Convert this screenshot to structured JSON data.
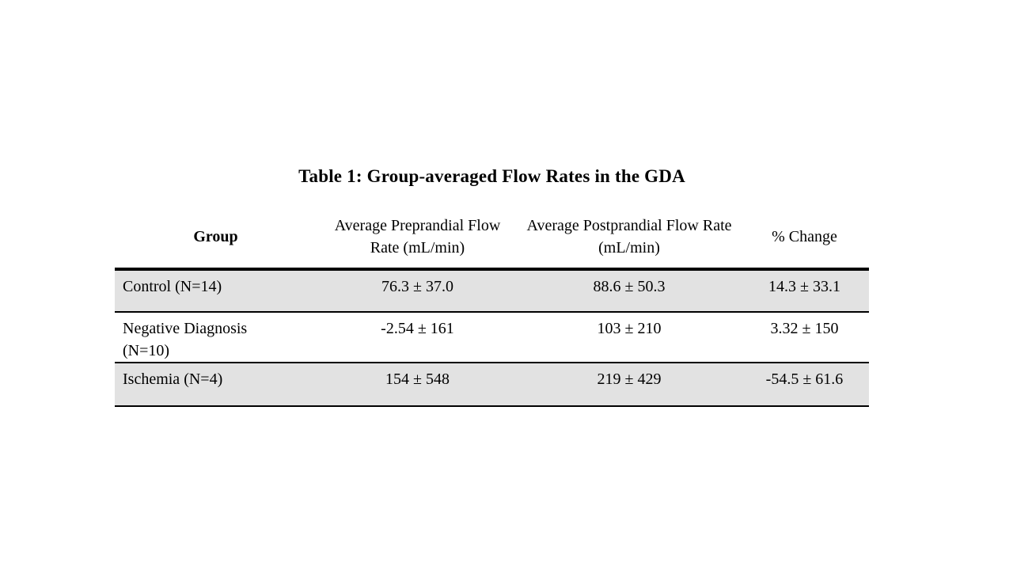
{
  "document": {
    "background_color": "#ffffff"
  },
  "table": {
    "title": "Table 1: Group-averaged Flow Rates in the GDA",
    "columns": [
      "Group",
      "Average Preprandial Flow Rate (mL/min)",
      "Average Postprandial Flow Rate (mL/min)",
      "% Change"
    ],
    "rows": [
      {
        "group": "Control (N=14)",
        "preprandial": "76.3 ± 37.0",
        "postprandial": "88.6 ± 50.3",
        "pct_change": "14.3 ± 33.1",
        "shaded": true
      },
      {
        "group": "Negative Diagnosis",
        "group_line2": "(N=10)",
        "preprandial": "-2.54 ± 161",
        "postprandial": "103 ± 210",
        "pct_change": "3.32 ± 150",
        "shaded": false
      },
      {
        "group": "Ischemia (N=4)",
        "preprandial": "154 ± 548",
        "postprandial": "219 ± 429",
        "pct_change": "-54.5 ± 61.6",
        "shaded": true
      }
    ],
    "colors": {
      "shaded_row": "#e2e2e2",
      "border": "#000000",
      "text": "#000000"
    }
  }
}
